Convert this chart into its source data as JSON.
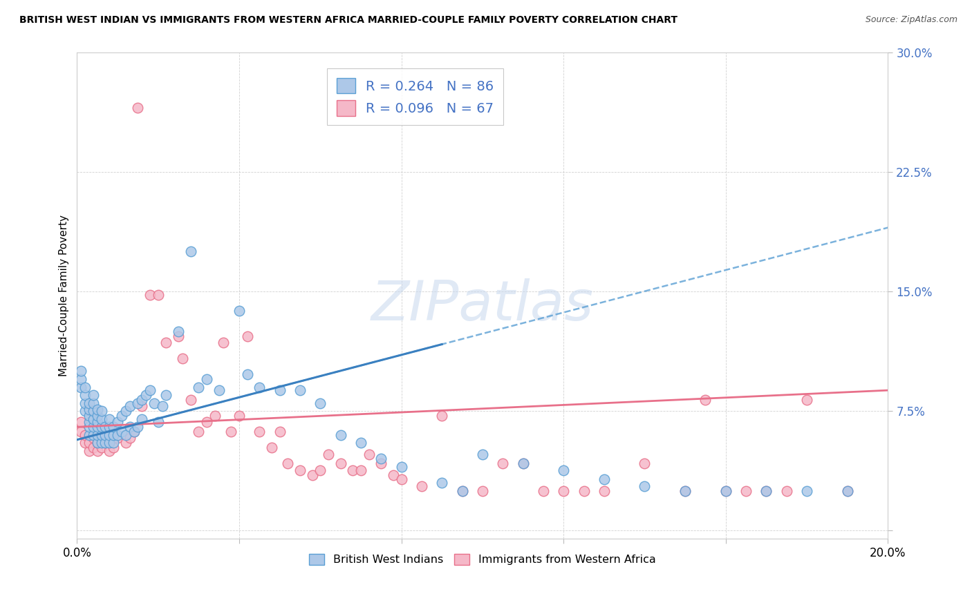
{
  "title": "BRITISH WEST INDIAN VS IMMIGRANTS FROM WESTERN AFRICA MARRIED-COUPLE FAMILY POVERTY CORRELATION CHART",
  "source": "Source: ZipAtlas.com",
  "ylabel": "Married-Couple Family Poverty",
  "xlim": [
    0.0,
    0.2
  ],
  "ylim": [
    -0.005,
    0.3
  ],
  "series1_color": "#adc8e8",
  "series2_color": "#f5b8c8",
  "series1_edge": "#5a9fd4",
  "series2_edge": "#e8708a",
  "trendline1_color": "#5a9fd4",
  "trendline2_color": "#e8708a",
  "R1": 0.264,
  "N1": 86,
  "R2": 0.096,
  "N2": 67,
  "legend1_label": "British West Indians",
  "legend2_label": "Immigrants from Western Africa",
  "blue_color": "#4472c4",
  "trendline1_start_x": 0.0,
  "trendline1_start_y": 0.057,
  "trendline1_end_x": 0.2,
  "trendline1_end_y": 0.19,
  "trendline2_start_x": 0.0,
  "trendline2_start_y": 0.065,
  "trendline2_end_x": 0.2,
  "trendline2_end_y": 0.088,
  "s1x": [
    0.001,
    0.001,
    0.001,
    0.002,
    0.002,
    0.002,
    0.002,
    0.003,
    0.003,
    0.003,
    0.003,
    0.003,
    0.003,
    0.004,
    0.004,
    0.004,
    0.004,
    0.004,
    0.004,
    0.005,
    0.005,
    0.005,
    0.005,
    0.005,
    0.005,
    0.006,
    0.006,
    0.006,
    0.006,
    0.006,
    0.007,
    0.007,
    0.007,
    0.008,
    0.008,
    0.008,
    0.008,
    0.009,
    0.009,
    0.009,
    0.01,
    0.01,
    0.011,
    0.011,
    0.012,
    0.012,
    0.013,
    0.013,
    0.014,
    0.015,
    0.015,
    0.016,
    0.016,
    0.017,
    0.018,
    0.019,
    0.02,
    0.021,
    0.022,
    0.025,
    0.028,
    0.03,
    0.032,
    0.035,
    0.04,
    0.042,
    0.045,
    0.05,
    0.055,
    0.06,
    0.065,
    0.07,
    0.075,
    0.08,
    0.09,
    0.095,
    0.1,
    0.11,
    0.12,
    0.13,
    0.14,
    0.15,
    0.16,
    0.17,
    0.18,
    0.19
  ],
  "s1y": [
    0.09,
    0.095,
    0.1,
    0.075,
    0.08,
    0.085,
    0.09,
    0.06,
    0.065,
    0.068,
    0.072,
    0.076,
    0.08,
    0.06,
    0.065,
    0.07,
    0.075,
    0.08,
    0.085,
    0.055,
    0.06,
    0.065,
    0.068,
    0.072,
    0.076,
    0.055,
    0.06,
    0.065,
    0.07,
    0.075,
    0.055,
    0.06,
    0.065,
    0.055,
    0.06,
    0.065,
    0.07,
    0.055,
    0.06,
    0.065,
    0.06,
    0.068,
    0.062,
    0.072,
    0.06,
    0.075,
    0.065,
    0.078,
    0.062,
    0.065,
    0.08,
    0.07,
    0.082,
    0.085,
    0.088,
    0.08,
    0.068,
    0.078,
    0.085,
    0.125,
    0.175,
    0.09,
    0.095,
    0.088,
    0.138,
    0.098,
    0.09,
    0.088,
    0.088,
    0.08,
    0.06,
    0.055,
    0.045,
    0.04,
    0.03,
    0.025,
    0.048,
    0.042,
    0.038,
    0.032,
    0.028,
    0.025,
    0.025,
    0.025,
    0.025,
    0.025
  ],
  "s2x": [
    0.001,
    0.001,
    0.002,
    0.002,
    0.003,
    0.003,
    0.004,
    0.004,
    0.005,
    0.005,
    0.006,
    0.007,
    0.008,
    0.009,
    0.01,
    0.012,
    0.013,
    0.014,
    0.015,
    0.016,
    0.018,
    0.02,
    0.022,
    0.025,
    0.026,
    0.028,
    0.03,
    0.032,
    0.034,
    0.036,
    0.038,
    0.04,
    0.042,
    0.045,
    0.048,
    0.05,
    0.052,
    0.055,
    0.058,
    0.06,
    0.062,
    0.065,
    0.068,
    0.07,
    0.072,
    0.075,
    0.078,
    0.08,
    0.085,
    0.09,
    0.095,
    0.1,
    0.105,
    0.11,
    0.115,
    0.12,
    0.125,
    0.13,
    0.14,
    0.15,
    0.155,
    0.16,
    0.165,
    0.17,
    0.175,
    0.18,
    0.19
  ],
  "s2y": [
    0.062,
    0.068,
    0.055,
    0.06,
    0.05,
    0.055,
    0.052,
    0.058,
    0.05,
    0.055,
    0.052,
    0.055,
    0.05,
    0.052,
    0.058,
    0.055,
    0.058,
    0.062,
    0.265,
    0.078,
    0.148,
    0.148,
    0.118,
    0.122,
    0.108,
    0.082,
    0.062,
    0.068,
    0.072,
    0.118,
    0.062,
    0.072,
    0.122,
    0.062,
    0.052,
    0.062,
    0.042,
    0.038,
    0.035,
    0.038,
    0.048,
    0.042,
    0.038,
    0.038,
    0.048,
    0.042,
    0.035,
    0.032,
    0.028,
    0.072,
    0.025,
    0.025,
    0.042,
    0.042,
    0.025,
    0.025,
    0.025,
    0.025,
    0.042,
    0.025,
    0.082,
    0.025,
    0.025,
    0.025,
    0.025,
    0.082,
    0.025
  ]
}
